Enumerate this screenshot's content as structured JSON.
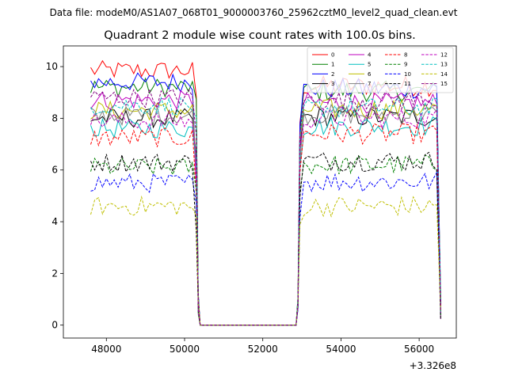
{
  "figure": {
    "suptitle": "Data file: modeM0/AS1A07_068T01_9000003760_25962cztM0_level2_quad_clean.evt"
  },
  "chart_data": {
    "type": "line",
    "title": "Quadrant 2 module wise count rates with 100.0s bins.",
    "xlabel": "",
    "ylabel": "",
    "x_offset_label": "+3.326e8",
    "xlim": [
      46900,
      56950
    ],
    "ylim": [
      -0.5,
      10.8
    ],
    "x_ticks": [
      48000,
      50000,
      52000,
      54000,
      56000
    ],
    "x_tick_labels": [
      "48000",
      "50000",
      "52000",
      "54000",
      "56000"
    ],
    "y_ticks": [
      0,
      2,
      4,
      6,
      8,
      10
    ],
    "y_tick_labels": [
      "0",
      "2",
      "4",
      "6",
      "8",
      "10"
    ],
    "grid": false,
    "legend_position": "top-right",
    "legend_columns": 4,
    "segments": [
      {
        "x_start": 47600,
        "x_end": 50200,
        "drop_to": 50400
      },
      {
        "x_start": 52950,
        "x_end": 56500,
        "rise_from": 52850
      }
    ],
    "series": [
      {
        "name": "0",
        "color": "#ff0000",
        "dash": "solid",
        "level1": 9.85,
        "level2": 9.25
      },
      {
        "name": "1",
        "color": "#008000",
        "dash": "solid",
        "level1": 9.2,
        "level2": 9.05
      },
      {
        "name": "2",
        "color": "#0000ff",
        "dash": "solid",
        "level1": 9.4,
        "level2": 9.15
      },
      {
        "name": "3",
        "color": "#000000",
        "dash": "solid",
        "level1": 8.0,
        "level2": 8.05
      },
      {
        "name": "4",
        "color": "#bf00bf",
        "dash": "solid",
        "level1": 8.7,
        "level2": 8.6
      },
      {
        "name": "5",
        "color": "#00bfbf",
        "dash": "solid",
        "level1": 7.6,
        "level2": 7.7
      },
      {
        "name": "6",
        "color": "#bfbf00",
        "dash": "solid",
        "level1": 8.3,
        "level2": 8.35
      },
      {
        "name": "7",
        "color": "#808080",
        "dash": "solid",
        "level1": 8.1,
        "level2": 8.15
      },
      {
        "name": "8",
        "color": "#ff0000",
        "dash": "dashed",
        "level1": 7.25,
        "level2": 7.4
      },
      {
        "name": "9",
        "color": "#008000",
        "dash": "dashed",
        "level1": 6.1,
        "level2": 6.2
      },
      {
        "name": "10",
        "color": "#0000ff",
        "dash": "dashed",
        "level1": 5.5,
        "level2": 5.55
      },
      {
        "name": "11",
        "color": "#000000",
        "dash": "dashed",
        "level1": 6.3,
        "level2": 6.35
      },
      {
        "name": "12",
        "color": "#bf00bf",
        "dash": "dashed",
        "level1": 7.9,
        "level2": 8.0
      },
      {
        "name": "13",
        "color": "#00bfbf",
        "dash": "dashed",
        "level1": 8.5,
        "level2": 8.4
      },
      {
        "name": "14",
        "color": "#bfbf00",
        "dash": "dashed",
        "level1": 4.6,
        "level2": 4.6
      },
      {
        "name": "15",
        "color": "#800080",
        "dash": "dashed",
        "level1": 8.8,
        "level2": 8.7
      }
    ]
  }
}
